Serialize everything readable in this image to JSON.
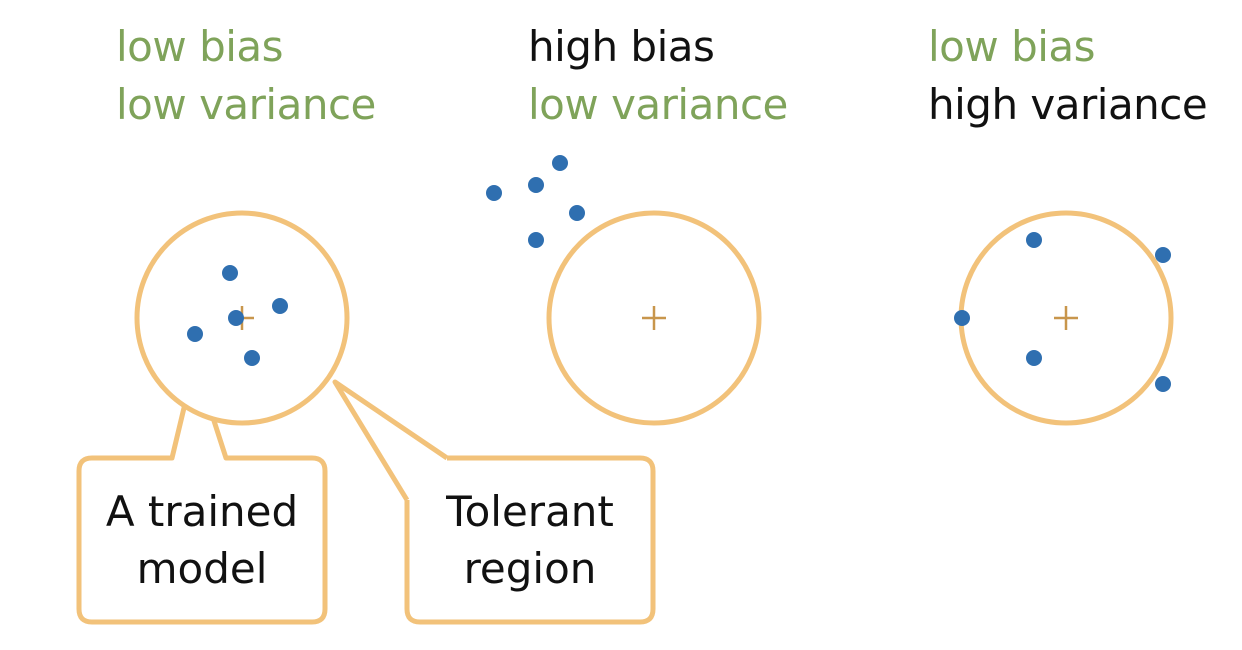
{
  "panels": [
    {
      "line1": "low bias",
      "line2": "low variance",
      "line1_color": "#7fa35a",
      "line2_color": "#7fa35a"
    },
    {
      "line1": "high bias",
      "line2": "low variance",
      "line1_color": "#111111",
      "line2_color": "#7fa35a"
    },
    {
      "line1": "low bias",
      "line2": "high variance",
      "line1_color": "#7fa35a",
      "line2_color": "#111111"
    }
  ],
  "callouts": {
    "trained_model": {
      "line1": "A trained",
      "line2": "model"
    },
    "tolerant_region": {
      "line1": "Tolerant",
      "line2": "region"
    }
  },
  "colors": {
    "circle_outline": "#f2c27a",
    "center_cross": "#c8964c",
    "point": "#2f6fb0",
    "green_text": "#7fa35a"
  }
}
